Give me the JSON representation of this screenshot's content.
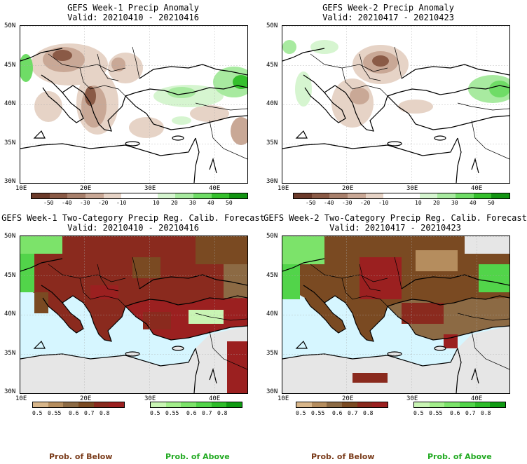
{
  "panels": [
    {
      "title": "GEFS Week-1 Precip Anomaly",
      "valid": "Valid: 20210410 - 20210416"
    },
    {
      "title": "GEFS Week-2 Precip Anomaly",
      "valid": "Valid: 20210417 - 20210423"
    },
    {
      "title": "GEFS Week-1 Two-Category Precip Reg. Calib. Forecast",
      "valid": "Valid: 20210410 - 20210416"
    },
    {
      "title": "GEFS Week-2 Two-Category Precip Reg. Calib. Forecast",
      "valid": "Valid: 20210417 - 20210423"
    }
  ],
  "lat_labels": [
    "50N",
    "45N",
    "40N",
    "35N",
    "30N"
  ],
  "lon_labels": [
    "10E",
    "20E",
    "30E",
    "40E"
  ],
  "anomaly_colorbar": {
    "labels": [
      "-50",
      "-40",
      "-30",
      "-20",
      "-10",
      "10",
      "20",
      "30",
      "40",
      "50"
    ],
    "colors": [
      "#6b3a2a",
      "#8a5a46",
      "#a8806c",
      "#c9a896",
      "#e6d3c6",
      "#ffffff",
      "#ffffff",
      "#d6f5d0",
      "#a8eaa0",
      "#6fdc66",
      "#35c02d",
      "#129412"
    ]
  },
  "below_colorbar": {
    "labels": [
      "0.5",
      "0.55",
      "0.6",
      "0.7",
      "0.8"
    ],
    "colors": [
      "#d8b68a",
      "#b58d5e",
      "#8c6a44",
      "#7a4a22",
      "#8a2a1e",
      "#9b2020"
    ]
  },
  "above_colorbar": {
    "labels": [
      "0.5",
      "0.55",
      "0.6",
      "0.7",
      "0.8"
    ],
    "colors": [
      "#c9f5b4",
      "#a4ee8c",
      "#7ce36a",
      "#52d44a",
      "#2ebc2a",
      "#0f9a12"
    ]
  },
  "prob_labels": {
    "below": "Prob. of Below",
    "above": "Prob. of Above"
  },
  "colors": {
    "below_label": "#7a3b1a",
    "above_label": "#22aa22",
    "sea": "#d6f6ff",
    "land_gray": "#e6e6e6"
  }
}
